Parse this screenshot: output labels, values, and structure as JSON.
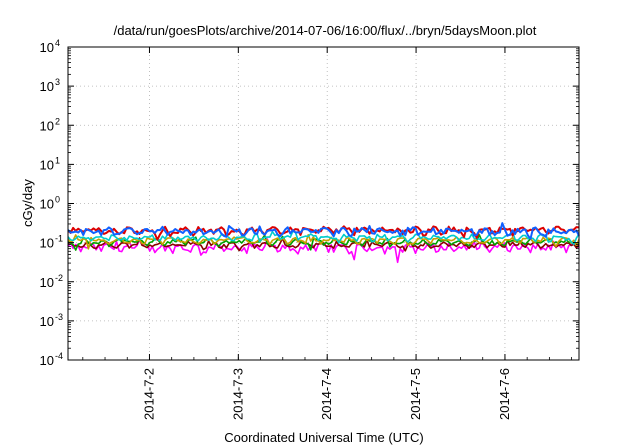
{
  "chart_data": {
    "type": "line",
    "title": "/data/run/goesPlots/archive/2014-07-06/16:00/flux/../bryn/5daysMoon.plot",
    "xlabel": "Coordinated Universal Time (UTC)",
    "ylabel": "cGy/day",
    "y_scale": "log",
    "ylim_exponents": [
      -4,
      4
    ],
    "xlim": [
      "2014-07-01 02:00",
      "2014-07-06 20:00"
    ],
    "x_ticks": [
      "2014-7-2",
      "2014-7-3",
      "2014-7-4",
      "2014-7-5",
      "2014-7-6"
    ],
    "grid": true,
    "series": [
      {
        "color": "#ff00ff",
        "level": 0.075,
        "variation": 0.22,
        "dip_depth": 0.55
      },
      {
        "color": "#8b0000",
        "level": 0.088,
        "variation": 0.12,
        "dip_depth": 0.3
      },
      {
        "color": "#00a000",
        "level": 0.105,
        "variation": 0.12,
        "dip_depth": 0.3
      },
      {
        "color": "#c8a000",
        "level": 0.115,
        "variation": 0.12,
        "dip_depth": 0.3
      },
      {
        "color": "#00cccc",
        "level": 0.135,
        "variation": 0.14,
        "dip_depth": 0.3
      },
      {
        "color": "#dd0000",
        "level": 0.205,
        "variation": 0.18,
        "dip_depth": 0.35
      },
      {
        "color": "#1060ff",
        "level": 0.195,
        "variation": 0.18,
        "dip_depth": 0.35
      }
    ]
  }
}
